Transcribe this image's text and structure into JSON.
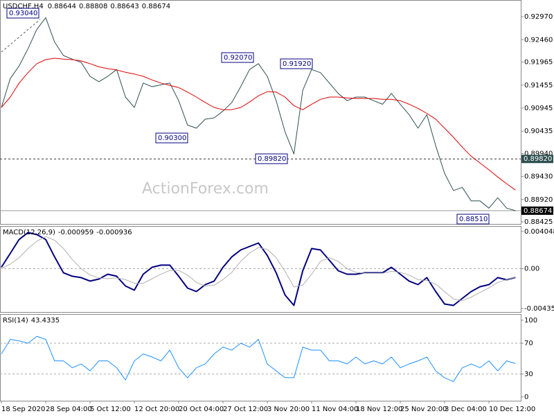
{
  "chart_data": [
    {
      "type": "line",
      "symbol": "USDCHF,H4",
      "ohlc": [
        0.88644,
        0.88808,
        0.88643,
        0.88674
      ],
      "watermark": "ActionForex.com",
      "ylim": [
        0.8838,
        0.9334
      ],
      "yticks": [
        {
          "value": 0.9297,
          "label": "0.92970"
        },
        {
          "value": 0.9246,
          "label": "0.92460"
        },
        {
          "value": 0.91965,
          "label": "0.91965"
        },
        {
          "value": 0.91455,
          "label": "0.91455"
        },
        {
          "value": 0.90945,
          "label": "0.90945"
        },
        {
          "value": 0.90435,
          "label": "0.90435"
        },
        {
          "value": 0.8994,
          "label": "0.89940"
        },
        {
          "value": 0.8943,
          "label": "0.89430"
        },
        {
          "value": 0.8892,
          "label": "0.88920"
        },
        {
          "value": 0.88425,
          "label": "0.88425"
        }
      ],
      "levels": [
        {
          "value": 0.8982,
          "label": "0.89820"
        }
      ],
      "annotations": [
        "0.93040",
        "0.92070",
        "0.90300",
        "0.89820",
        "0.91920",
        "0.88510"
      ],
      "series": [
        {
          "color": "#2f4f4f",
          "values": [
            0.9096,
            0.916,
            0.9188,
            0.9226,
            0.9269,
            0.9295,
            0.9241,
            0.9211,
            0.9203,
            0.9196,
            0.9165,
            0.9153,
            0.9165,
            0.918,
            0.9119,
            0.9096,
            0.915,
            0.9142,
            0.9146,
            0.915,
            0.9111,
            0.9057,
            0.905,
            0.907,
            0.9073,
            0.9088,
            0.9107,
            0.9142,
            0.918,
            0.9193,
            0.9165,
            0.9111,
            0.9042,
            0.8993,
            0.9134,
            0.918,
            0.9173,
            0.915,
            0.9127,
            0.9111,
            0.9119,
            0.9119,
            0.9111,
            0.9103,
            0.9127,
            0.9103,
            0.908,
            0.905,
            0.908,
            0.9011,
            0.895,
            0.8912,
            0.8919,
            0.8889,
            0.8889,
            0.8873,
            0.8896,
            0.8873,
            0.88674
          ]
        },
        {
          "color": "#e00000",
          "values": [
            0.9096,
            0.9119,
            0.915,
            0.9173,
            0.9193,
            0.9202,
            0.9205,
            0.9203,
            0.9202,
            0.9199,
            0.9193,
            0.9186,
            0.9182,
            0.9179,
            0.9174,
            0.917,
            0.9165,
            0.9157,
            0.915,
            0.9145,
            0.914,
            0.913,
            0.9119,
            0.9107,
            0.9096,
            0.9091,
            0.9091,
            0.9096,
            0.9108,
            0.9122,
            0.9131,
            0.913,
            0.9119,
            0.91,
            0.9091,
            0.9103,
            0.9114,
            0.9119,
            0.9119,
            0.9117,
            0.9116,
            0.9116,
            0.9116,
            0.9114,
            0.9114,
            0.9111,
            0.9103,
            0.9094,
            0.9083,
            0.907,
            0.905,
            0.903,
            0.9008,
            0.8988,
            0.8973,
            0.8958,
            0.8942,
            0.8927,
            0.8913
          ]
        }
      ]
    },
    {
      "type": "line",
      "title": "MACD(12,26,9)",
      "ylim": [
        -0.00473,
        0.00465
      ],
      "yticks": [
        0.004048,
        {
          "value": 0,
          "label": "0.00"
        },
        -0.004351
      ],
      "levels": [
        0
      ],
      "series": [
        {
          "color": "#000080",
          "width": 2,
          "values": [
            0.00015,
            0.00166,
            0.00318,
            0.00394,
            0.00371,
            0.00318,
            0.00129,
            -0.00045,
            -0.00083,
            -0.00098,
            -0.00136,
            -0.00114,
            -0.00061,
            -0.00083,
            -0.00189,
            -0.00235,
            -0.00061,
            0.00015,
            0.00038,
            0.00038,
            -0.00083,
            -0.00212,
            -0.0025,
            -0.00174,
            -0.00136,
            0.00015,
            0.00129,
            0.00204,
            0.00242,
            0.0028,
            0.00144,
            -0.00045,
            -0.00288,
            -0.00401,
            -0.00023,
            0.00219,
            0.00204,
            0.00091,
            -0.00023,
            -0.00061,
            -0.00061,
            -0.00045,
            -0.00045,
            -0.00045,
            0.00015,
            -0.00061,
            -0.00136,
            -0.00174,
            -0.00098,
            -0.0025,
            -0.00386,
            -0.00401,
            -0.00325,
            -0.0025,
            -0.00197,
            -0.00174,
            -0.00098,
            -0.00121,
            -0.000959
          ]
        },
        {
          "color": "#b0b0b0",
          "width": 1,
          "values": [
            0,
            0.0005,
            0.0012,
            0.0022,
            0.003,
            0.0035,
            0.0031,
            0.0022,
            0.001,
            0,
            -0.0007,
            -0.001,
            -0.0011,
            -0.001,
            -0.0012,
            -0.0016,
            -0.0016,
            -0.0011,
            -0.0006,
            -0.0002,
            -0.0002,
            -0.0007,
            -0.0015,
            -0.0019,
            -0.0018,
            -0.0012,
            -0.0004,
            0.0008,
            0.0017,
            0.0023,
            0.0021,
            0.0012,
            -0.0003,
            -0.002,
            -0.0018,
            -0.0006,
            0.0008,
            0.0012,
            0.0008,
            0,
            -0.0004,
            -0.0005,
            -0.0005,
            -0.0005,
            -0.0003,
            -0.0004,
            -0.0007,
            -0.0012,
            -0.0013,
            -0.0017,
            -0.0025,
            -0.0033,
            -0.0035,
            -0.0031,
            -0.0026,
            -0.0021,
            -0.0015,
            -0.0012,
            -0.000936
          ]
        }
      ]
    },
    {
      "type": "line",
      "title": "RSI(14)",
      "ylim": [
        -5,
        108
      ],
      "yticks": [
        100,
        70,
        30,
        0
      ],
      "levels": [
        70,
        30
      ],
      "categories": [
        "18 Sep 2020",
        null,
        null,
        null,
        null,
        "28 Sep 04:00",
        null,
        null,
        null,
        null,
        "5 Oct 12:00",
        null,
        null,
        null,
        null,
        "12 Oct 20:00",
        null,
        null,
        null,
        null,
        "20 Oct 04:00",
        null,
        null,
        null,
        null,
        "27 Oct 12:00",
        null,
        null,
        null,
        null,
        "3 Nov 20:00",
        null,
        null,
        null,
        null,
        "11 Nov 04:00",
        null,
        null,
        null,
        null,
        "18 Nov 12:00",
        null,
        null,
        null,
        null,
        "25 Nov 20:00",
        null,
        null,
        null,
        null,
        "3 Dec 04:00",
        null,
        null,
        null,
        null,
        "10 Dec 12:00",
        null,
        null,
        null
      ],
      "series": [
        {
          "color": "#1e90ff",
          "width": 1,
          "values": [
            56,
            75,
            73,
            70,
            79,
            75,
            47,
            47,
            38,
            43,
            34,
            47,
            47,
            38,
            22,
            47,
            56,
            52,
            47,
            61,
            38,
            25,
            38,
            43,
            56,
            65,
            61,
            70,
            65,
            75,
            43,
            34,
            25,
            25,
            65,
            61,
            61,
            47,
            47,
            43,
            52,
            43,
            47,
            43,
            52,
            38,
            43,
            47,
            52,
            34,
            25,
            20,
            38,
            43,
            38,
            47,
            34,
            47,
            43.4335
          ]
        }
      ]
    }
  ]
}
